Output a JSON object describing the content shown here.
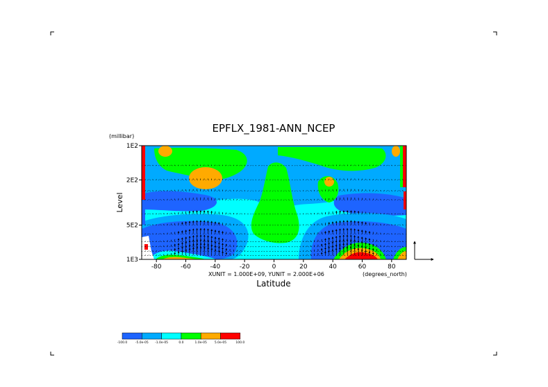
{
  "chart_data": {
    "type": "heatmap",
    "title": "EPFLX_1981-ANN_NCEP",
    "xlabel": "Latitude",
    "ylabel": "Level",
    "y_units": "(millibar)",
    "x_units": "(degrees_north)",
    "vector_units": "XUNIT = 1.000E+09, YUNIT = 2.000E+06",
    "x_ticks": [
      "-80",
      "-60",
      "-40",
      "-20",
      "0",
      "20",
      "40",
      "60",
      "80"
    ],
    "x_tick_values": [
      -80,
      -60,
      -40,
      -20,
      0,
      20,
      40,
      60,
      80
    ],
    "y_ticks": [
      "1E2",
      "2E2",
      "5E2",
      "1E3"
    ],
    "y_tick_values": [
      100,
      200,
      500,
      1000
    ],
    "xlim": [
      -90,
      90
    ],
    "ylim": [
      1000,
      100
    ],
    "y_scale": "log",
    "legend": {
      "labels": [
        "-100.0",
        "-5.0e-05",
        "-1.0e-05",
        "0.0",
        "1.0e-05",
        "5.0e-05",
        "100.0"
      ],
      "colors": [
        "#1e64ff",
        "#00aaff",
        "#00ffff",
        "#00ff00",
        "#ffaa00",
        "#ff0000"
      ]
    },
    "color_key": {
      "dark_blue": "#1e64ff",
      "light_blue": "#00aaff",
      "cyan": "#00ffff",
      "green": "#00ff00",
      "orange": "#ffaa00",
      "red": "#ff0000"
    }
  }
}
